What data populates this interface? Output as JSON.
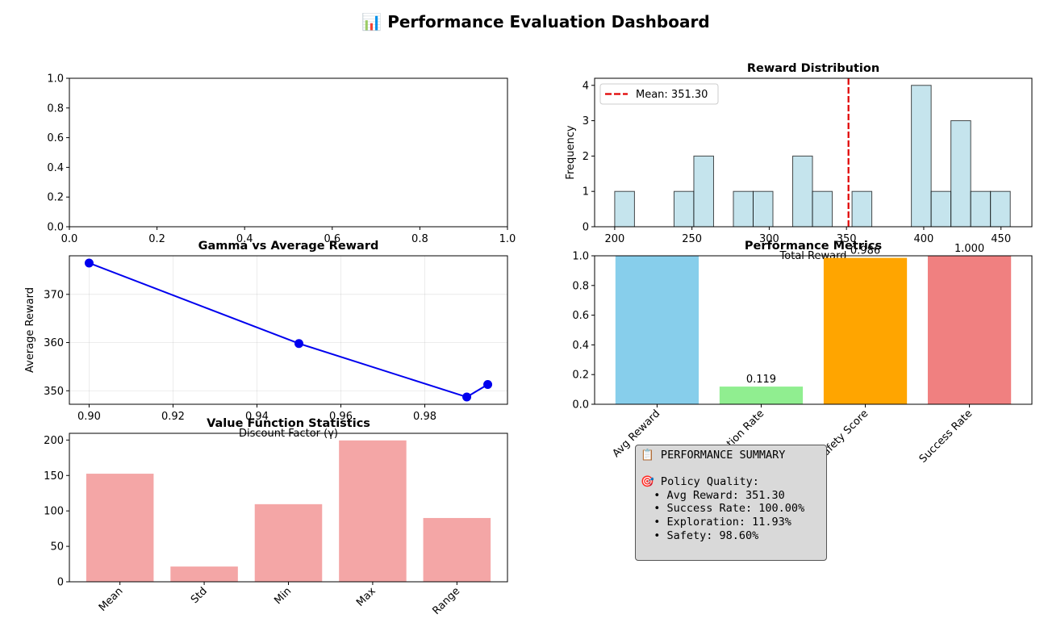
{
  "suptitle": "📊 Performance Evaluation Dashboard",
  "chart_data": [
    {
      "id": "empty",
      "type": "empty",
      "title": "",
      "xlim": [
        0,
        1
      ],
      "ylim": [
        0,
        1
      ],
      "xticks": [
        "0.0",
        "0.2",
        "0.4",
        "0.6",
        "0.8",
        "1.0"
      ],
      "yticks": [
        "0.0",
        "0.2",
        "0.4",
        "0.6",
        "0.8",
        "1.0"
      ]
    },
    {
      "id": "reward_dist",
      "type": "bar",
      "title": "Reward Distribution",
      "xlabel": "Total Reward",
      "ylabel": "Frequency",
      "xlim": [
        187,
        470
      ],
      "ylim": [
        0,
        4.2
      ],
      "xticks": [
        200,
        250,
        300,
        350,
        400,
        450
      ],
      "yticks": [
        0,
        1,
        2,
        3,
        4
      ],
      "bin_width": 12.8,
      "bin_starts": [
        200,
        212.8,
        225.6,
        238.4,
        251.2,
        264,
        276.8,
        289.6,
        302.4,
        315.2,
        328,
        340.8,
        353.6,
        366.4,
        379.2,
        392,
        404.8,
        417.6,
        430.4,
        443.2
      ],
      "counts": [
        1,
        0,
        0,
        1,
        2,
        0,
        1,
        1,
        0,
        2,
        1,
        0,
        1,
        0,
        0,
        4,
        1,
        3,
        1,
        1
      ],
      "mean": 351.3,
      "legend": "Mean: 351.30",
      "color": "#add8e6",
      "mean_color": "#e00000"
    },
    {
      "id": "gamma",
      "type": "line",
      "title": "Gamma vs Average Reward",
      "xlabel": "Discount Factor (γ)",
      "ylabel": "Average Reward",
      "x": [
        0.9,
        0.95,
        0.99,
        0.995
      ],
      "y": [
        376.5,
        359.8,
        348.7,
        351.3
      ],
      "xlim": [
        0.8953,
        0.9997
      ],
      "ylim": [
        347.2,
        378.0
      ],
      "xticks": [
        "0.90",
        "0.92",
        "0.94",
        "0.96",
        "0.98"
      ],
      "xtick_values": [
        0.9,
        0.92,
        0.94,
        0.96,
        0.98
      ],
      "yticks": [
        350,
        360,
        370
      ],
      "grid": true,
      "color": "#0000ee"
    },
    {
      "id": "perf_metrics",
      "type": "bar",
      "title": "Performance Metrics",
      "categories": [
        "Avg Reward",
        "Exploration Rate",
        "Safety Score",
        "Success Rate"
      ],
      "values": [
        1.0,
        0.119,
        0.986,
        1.0
      ],
      "labels": [
        "",
        "0.119",
        "0.986",
        "1.000"
      ],
      "ylim": [
        0,
        1.0
      ],
      "yticks": [
        "0.0",
        "0.2",
        "0.4",
        "0.6",
        "0.8",
        "1.0"
      ],
      "colors": [
        "#87ceeb",
        "#90ee90",
        "#ffa500",
        "#f08080"
      ]
    },
    {
      "id": "value_stats",
      "type": "bar",
      "title": "Value Function Statistics",
      "categories": [
        "Mean",
        "Std",
        "Min",
        "Max",
        "Range"
      ],
      "values": [
        152.5,
        21.5,
        109.5,
        199.5,
        90.0
      ],
      "ylim": [
        0,
        209.5
      ],
      "yticks": [
        0,
        50,
        100,
        150,
        200
      ],
      "color": "#f4a6a6"
    }
  ],
  "summary": {
    "header": "📋 PERFORMANCE SUMMARY",
    "section": "🎯 Policy Quality:",
    "lines": [
      "  • Avg Reward: 351.30",
      "  • Success Rate: 100.00%",
      "  • Exploration: 11.93%",
      "  • Safety: 98.60%"
    ]
  }
}
